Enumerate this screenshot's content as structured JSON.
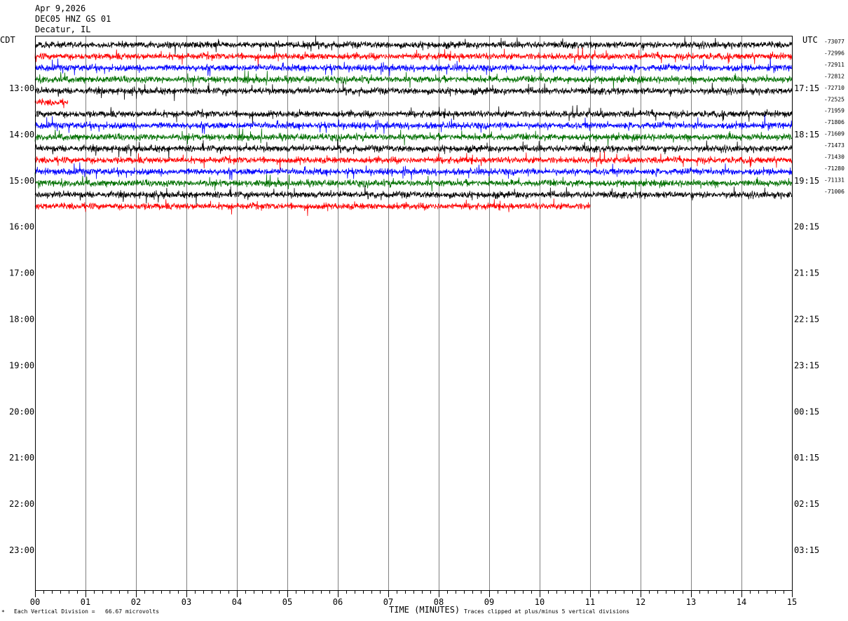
{
  "header": {
    "date": "Apr 9,2026",
    "station": "DEC05 HNZ GS 01",
    "location": "Decatur, IL",
    "left_zone": "CDT",
    "right_zone": "UTC"
  },
  "footer": {
    "scale_text": "Each Vertical Division =   66.67 microvolts",
    "xlabel": "TIME (MINUTES)",
    "clip_text": "Traces clipped at plus/minus 5 vertical divisions"
  },
  "colors": {
    "black": "#000000",
    "red": "#ff0000",
    "blue": "#0000ff",
    "green": "#007000",
    "grid": "#808080"
  },
  "chart_data": {
    "type": "line",
    "title": "",
    "xlabel": "TIME (MINUTES)",
    "ylabel": "",
    "xlim": [
      0,
      15
    ],
    "x_ticks": [
      "00",
      "01",
      "02",
      "03",
      "04",
      "05",
      "06",
      "07",
      "08",
      "09",
      "10",
      "11",
      "12",
      "13",
      "14",
      "15"
    ],
    "left_hour_labels": [
      "13:00",
      "14:00",
      "15:00",
      "16:00",
      "17:00",
      "18:00",
      "19:00",
      "20:00",
      "21:00",
      "22:00",
      "23:00"
    ],
    "right_hour_labels": [
      "17:15",
      "18:15",
      "19:15",
      "20:15",
      "21:15",
      "22:15",
      "23:15",
      "00:15",
      "01:15",
      "02:15",
      "03:15"
    ],
    "trace_colors_cycle": [
      "black",
      "red",
      "blue",
      "green"
    ],
    "traces": [
      {
        "offset": "-73077",
        "color": "black",
        "end_minute": 15
      },
      {
        "offset": "-72996",
        "color": "red",
        "end_minute": 15
      },
      {
        "offset": "-72911",
        "color": "blue",
        "end_minute": 15
      },
      {
        "offset": "-72812",
        "color": "green",
        "end_minute": 15
      },
      {
        "offset": "-72710",
        "color": "black",
        "end_minute": 15
      },
      {
        "offset": "-72525",
        "color": "red",
        "end_minute": 0.65
      },
      {
        "offset": "-71959",
        "color": "black",
        "end_minute": 15
      },
      {
        "offset": "-71806",
        "color": "blue",
        "end_minute": 15
      },
      {
        "offset": "-71609",
        "color": "green",
        "end_minute": 15
      },
      {
        "offset": "-71473",
        "color": "black",
        "end_minute": 15
      },
      {
        "offset": "-71430",
        "color": "red",
        "end_minute": 15
      },
      {
        "offset": "-71280",
        "color": "blue",
        "end_minute": 15
      },
      {
        "offset": "-71131",
        "color": "green",
        "end_minute": 15
      },
      {
        "offset": "-71006",
        "color": "black",
        "end_minute": 15
      },
      {
        "offset": "",
        "color": "red",
        "end_minute": 11
      }
    ]
  }
}
